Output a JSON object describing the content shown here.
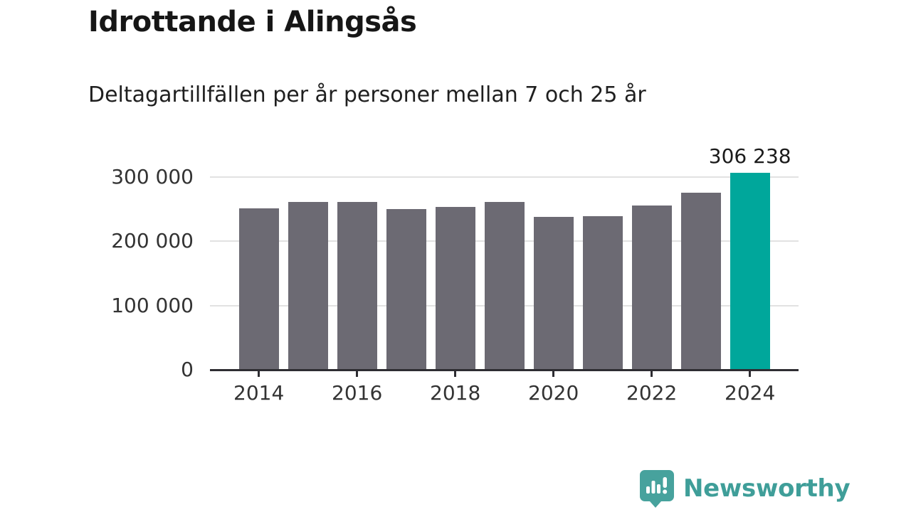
{
  "title": "Idrottande i Alingsås",
  "subtitle": "Deltagartillfällen per år personer mellan 7 och 25 år",
  "chart_data": {
    "type": "bar",
    "categories": [
      "2014",
      "2015",
      "2016",
      "2017",
      "2018",
      "2019",
      "2020",
      "2021",
      "2022",
      "2023",
      "2024"
    ],
    "values": [
      251000,
      261000,
      261000,
      250000,
      253000,
      261000,
      238000,
      239000,
      255000,
      275000,
      306238
    ],
    "title": "Idrottande i Alingsås",
    "xlabel": "",
    "ylabel": "",
    "ylim": [
      0,
      310000
    ],
    "grid": true,
    "legend": "none",
    "bar_color": "#6c6a73",
    "highlight_color": "#00a79b",
    "highlight_index": 10,
    "annotation": {
      "index": 10,
      "label": "306 238"
    },
    "y_ticks": [
      {
        "value": 0,
        "label": "0"
      },
      {
        "value": 100000,
        "label": "100 000"
      },
      {
        "value": 200000,
        "label": "200 000"
      },
      {
        "value": 300000,
        "label": "300 000"
      }
    ],
    "x_tick_labels": [
      "2014",
      "2016",
      "2018",
      "2020",
      "2022",
      "2024"
    ]
  },
  "branding": {
    "name": "Newsworthy",
    "logo_icon": "speech-bubble-bar-chart-icon",
    "color": "#47a29d"
  }
}
